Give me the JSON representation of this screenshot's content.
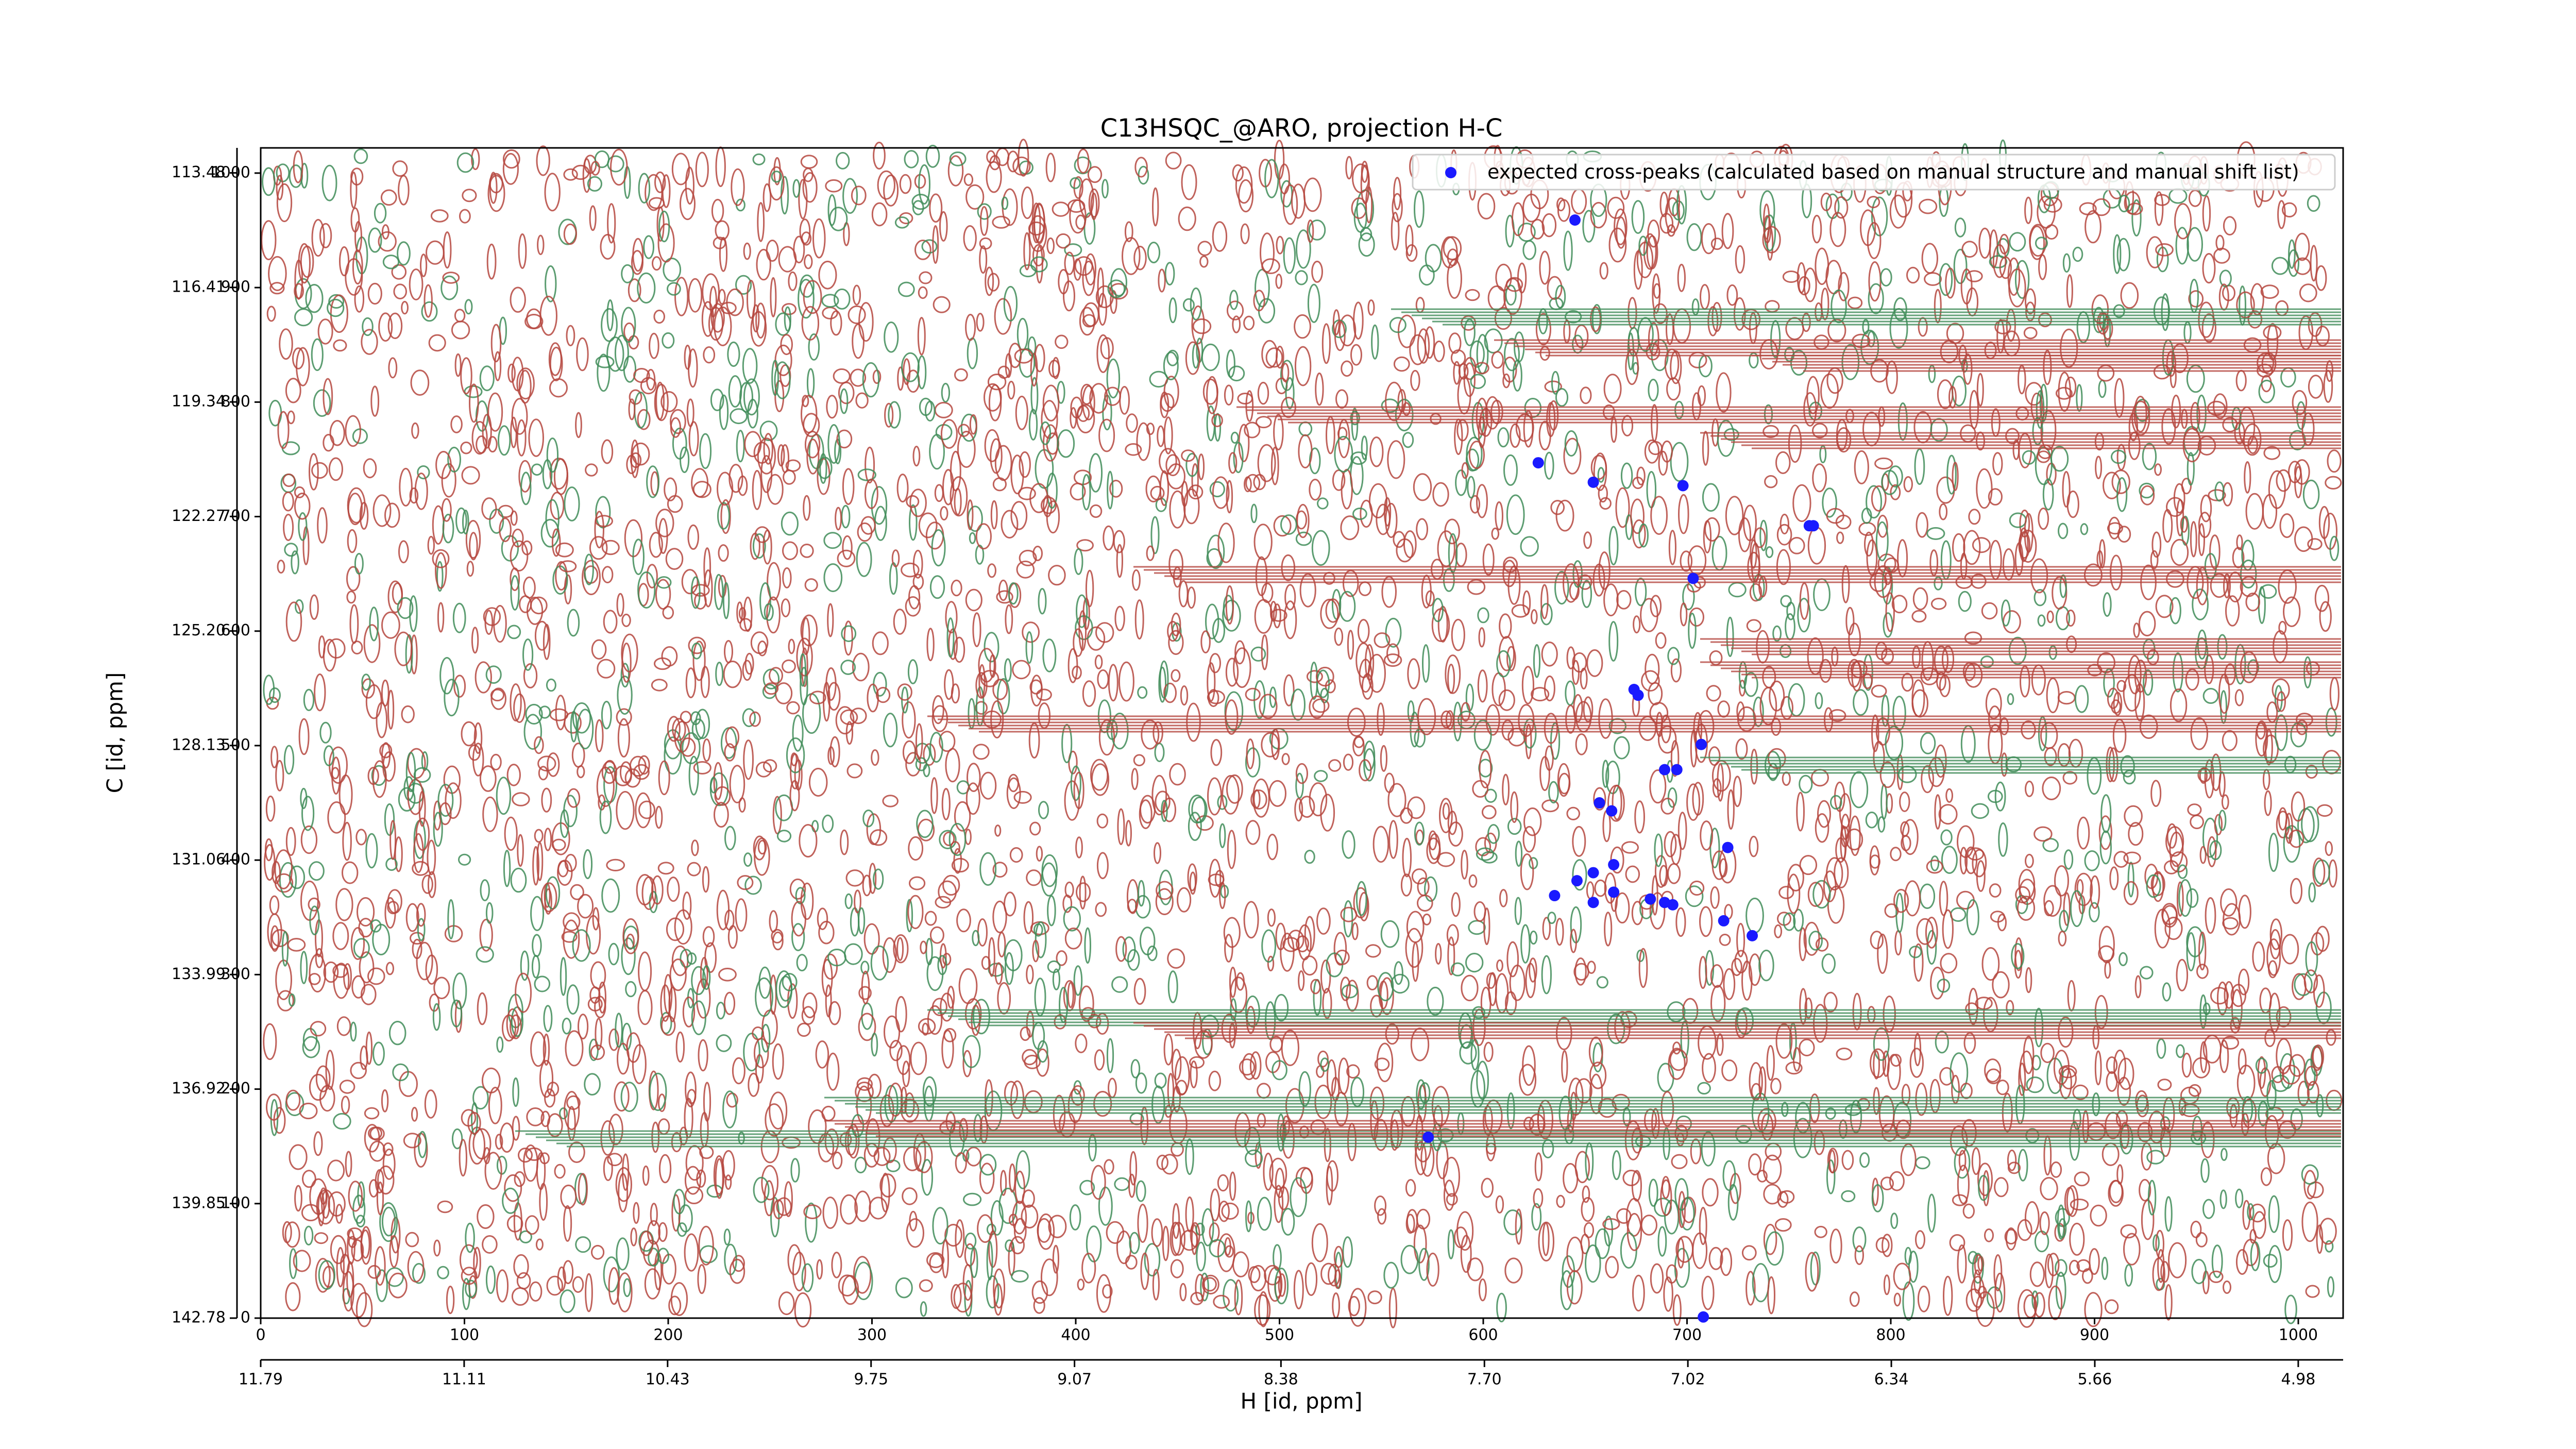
{
  "chart_data": {
    "type": "scatter",
    "title": "C13HSQC_@ARO, projection H-C",
    "xlabel": "H [id, ppm]",
    "ylabel": "C [id, ppm]",
    "xlim": [
      0,
      1022
    ],
    "ylim": [
      0,
      1022
    ],
    "xticks": [
      0,
      100,
      200,
      300,
      400,
      500,
      600,
      700,
      800,
      900,
      1000
    ],
    "yticks": [
      0,
      100,
      200,
      300,
      400,
      500,
      600,
      700,
      800,
      900,
      1000
    ],
    "x2lim": [
      11.79,
      4.83
    ],
    "x2ticks": [
      {
        "value": 11.79,
        "label": "11.79"
      },
      {
        "value": 11.11,
        "label": "11.11"
      },
      {
        "value": 10.43,
        "label": "10.43"
      },
      {
        "value": 9.75,
        "label": "9.75"
      },
      {
        "value": 9.07,
        "label": "9.07"
      },
      {
        "value": 8.38,
        "label": "8.38"
      },
      {
        "value": 7.7,
        "label": "7.70"
      },
      {
        "value": 7.02,
        "label": "7.02"
      },
      {
        "value": 6.34,
        "label": "6.34"
      },
      {
        "value": 5.66,
        "label": "5.66"
      },
      {
        "value": 4.98,
        "label": "4.98"
      }
    ],
    "y2lim": [
      142.78,
      112.84
    ],
    "y2ticks": [
      {
        "value": 142.78,
        "label": "142.78"
      },
      {
        "value": 139.85,
        "label": "139.85"
      },
      {
        "value": 136.92,
        "label": "136.92"
      },
      {
        "value": 133.99,
        "label": "133.99"
      },
      {
        "value": 131.06,
        "label": "131.06"
      },
      {
        "value": 128.13,
        "label": "128.13"
      },
      {
        "value": 125.2,
        "label": "125.20"
      },
      {
        "value": 122.27,
        "label": "122.27"
      },
      {
        "value": 119.34,
        "label": "119.34"
      },
      {
        "value": 116.41,
        "label": "116.41"
      },
      {
        "value": 113.48,
        "label": "113.48"
      }
    ],
    "legend": "upper right",
    "series": [
      {
        "name": "expected cross-peaks (calculated based on manual structure and manual shift list)",
        "color": "#1a1aff",
        "x": [
          645,
          627,
          654,
          698,
          760,
          762,
          703,
          674,
          676,
          707,
          689,
          695,
          657,
          663,
          720,
          664,
          654,
          646,
          635,
          664,
          654,
          682,
          689,
          693,
          718,
          732,
          573,
          708
        ],
        "values": [
          959,
          747,
          730,
          727,
          692,
          692,
          646,
          549,
          544,
          501,
          479,
          479,
          450,
          443,
          411,
          396,
          389,
          382,
          369,
          372,
          363,
          366,
          363,
          361,
          347,
          334,
          158,
          1
        ]
      }
    ]
  }
}
